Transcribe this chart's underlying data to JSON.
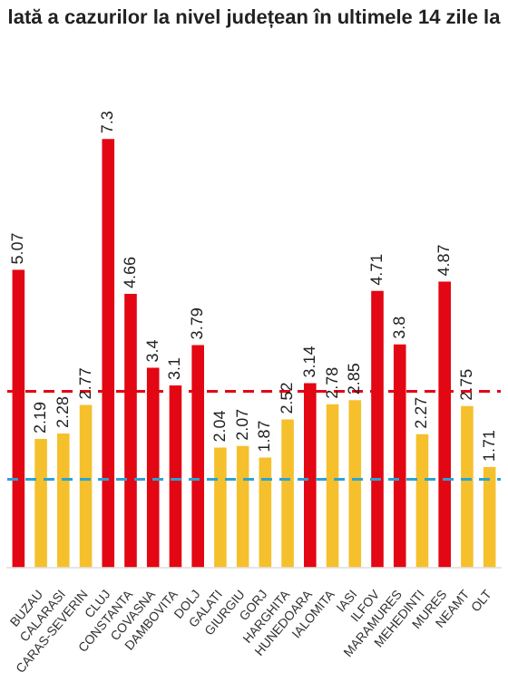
{
  "chart_data": {
    "type": "bar",
    "title": "lată a cazurilor la nivel județean în ultimele 14 zile la",
    "categories": [
      null,
      "BUZAU",
      "CALARASI",
      "CARAS-SEVERIN",
      "CLUJ",
      "CONSTANTA",
      "COVASNA",
      "DAMBOVITA",
      "DOLJ",
      "GALATI",
      "GIURGIU",
      "GORJ",
      "HARGHITA",
      "HUNEDOARA",
      "IALOMITA",
      "IASI",
      "ILFOV",
      "MARAMURES",
      "MEHEDINTI",
      "MURES",
      "NEAMT",
      "OLT"
    ],
    "values": [
      5.07,
      2.19,
      2.28,
      2.77,
      7.3,
      4.66,
      3.4,
      3.1,
      3.79,
      2.04,
      2.07,
      1.87,
      2.52,
      3.14,
      2.78,
      2.85,
      4.71,
      3.8,
      2.27,
      4.87,
      2.75,
      1.71
    ],
    "colors": [
      "#e30613",
      "#f5c02c",
      "#f5c02c",
      "#f5c02c",
      "#e30613",
      "#e30613",
      "#e30613",
      "#e30613",
      "#e30613",
      "#f5c02c",
      "#f5c02c",
      "#f5c02c",
      "#f5c02c",
      "#e30613",
      "#f5c02c",
      "#f5c02c",
      "#e30613",
      "#e30613",
      "#f5c02c",
      "#e30613",
      "#f5c02c",
      "#f5c02c"
    ],
    "ref_lines": [
      {
        "axis": "y",
        "value": 3,
        "color": "#e30613",
        "line_style": "dashed"
      },
      {
        "axis": "y",
        "value": 1.5,
        "color": "#2ba3d6",
        "line_style": "dashed"
      }
    ],
    "data_labels": true,
    "grid": false,
    "legend": false
  }
}
